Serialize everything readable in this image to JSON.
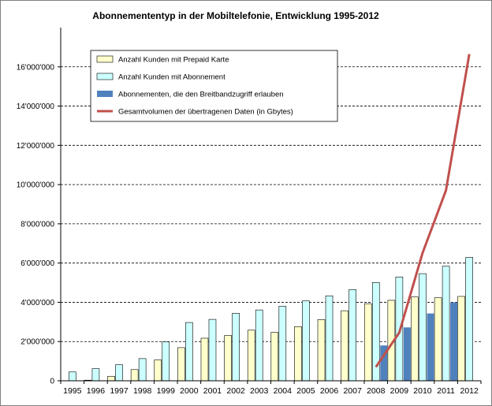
{
  "chart_data": {
    "type": "bar",
    "title": "Abonnemententyp in der Mobiltelefonie, Entwicklung 1995-2012",
    "xlabel": "",
    "ylabel": "",
    "ylim": [
      0,
      18000000
    ],
    "ytick_values": [
      0,
      2000000,
      4000000,
      6000000,
      8000000,
      10000000,
      12000000,
      14000000,
      16000000
    ],
    "ytick_labels": [
      "0",
      "2'000'000",
      "4'000'000",
      "6'000'000",
      "8'000'000",
      "10'000'000",
      "12'000'000",
      "14'000'000",
      "16'000'000"
    ],
    "grid": "horizontal dashed",
    "legend_position": "top-left",
    "categories": [
      "1995",
      "1996",
      "1997",
      "1998",
      "1999",
      "2000",
      "2001",
      "2002",
      "2003",
      "2004",
      "2005",
      "2006",
      "2007",
      "2008",
      "2009",
      "2010",
      "2011",
      "2012"
    ],
    "series": [
      {
        "name": "Anzahl Kunden mit Prepaid Karte",
        "kind": "bar",
        "color": "#ffffcc",
        "values": [
          0,
          30000,
          230000,
          570000,
          1060000,
          1690000,
          2170000,
          2310000,
          2580000,
          2470000,
          2760000,
          3120000,
          3570000,
          3930000,
          4100000,
          4270000,
          4230000,
          4300000
        ]
      },
      {
        "name": "Anzahl Kunden mit Abonnement",
        "kind": "bar",
        "color": "#ccffff",
        "values": [
          450000,
          620000,
          820000,
          1130000,
          1990000,
          2970000,
          3130000,
          3440000,
          3610000,
          3800000,
          4070000,
          4330000,
          4650000,
          5010000,
          5290000,
          5460000,
          5840000,
          6290000
        ]
      },
      {
        "name": "Abonnementen, die den Breitbandzugriff erlauben",
        "kind": "bar",
        "color": "#4f81bd",
        "values": [
          null,
          null,
          null,
          null,
          null,
          null,
          null,
          null,
          null,
          null,
          null,
          null,
          null,
          1800000,
          2720000,
          3430000,
          3990000,
          null
        ]
      },
      {
        "name": "Gesamtvolumen der übertragenen Daten (in Gbytes)",
        "kind": "line",
        "color": "#c0504d",
        "values": [
          null,
          null,
          null,
          null,
          null,
          null,
          null,
          null,
          null,
          null,
          null,
          null,
          null,
          700000,
          2450000,
          6520000,
          9700000,
          16650000
        ]
      }
    ]
  }
}
